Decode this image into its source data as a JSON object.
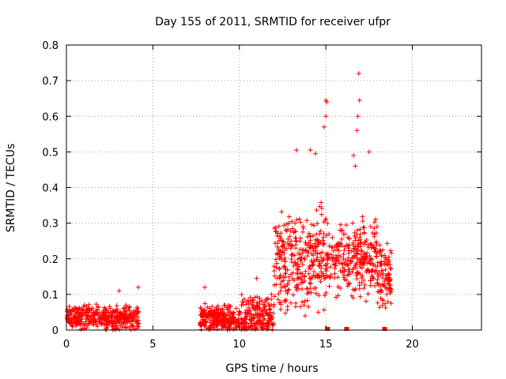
{
  "chart_data": {
    "type": "scatter",
    "title": "Day 155 of 2011, SRMTID for receiver ufpr",
    "xlabel": "GPS time / hours",
    "ylabel": "SRMTID / TECUs",
    "xlim": [
      0,
      24
    ],
    "ylim": [
      0,
      0.8
    ],
    "x_ticks": [
      0,
      5,
      10,
      15,
      20
    ],
    "x_tick_labels": [
      "0",
      "5",
      "10",
      "15",
      "20"
    ],
    "y_ticks": [
      0,
      0.1,
      0.2,
      0.3,
      0.4,
      0.5,
      0.6,
      0.7,
      0.8
    ],
    "y_tick_labels": [
      "0",
      "0.1",
      "0.2",
      "0.3",
      "0.4",
      "0.5",
      "0.6",
      "0.7",
      "0.8"
    ],
    "grid": true,
    "marker": "+",
    "color": "#ff0000",
    "square_marks_x": [
      15.1,
      16.2,
      18.4
    ],
    "segments": [
      {
        "x_start": 0.0,
        "x_end": 4.2,
        "y_base": 0.035,
        "y_spread": 0.03,
        "count": 420
      },
      {
        "x_start": 7.7,
        "x_end": 10.0,
        "y_base": 0.03,
        "y_spread": 0.035,
        "count": 260
      },
      {
        "x_start": 10.0,
        "x_end": 12.0,
        "y_base": 0.04,
        "y_spread": 0.05,
        "count": 200
      },
      {
        "x_start": 12.0,
        "x_end": 15.0,
        "y_base": 0.2,
        "y_spread": 0.12,
        "count": 320
      },
      {
        "x_start": 15.0,
        "x_end": 16.8,
        "y_base": 0.2,
        "y_spread": 0.09,
        "count": 160
      },
      {
        "x_start": 16.8,
        "x_end": 18.0,
        "y_base": 0.2,
        "y_spread": 0.1,
        "count": 140
      },
      {
        "x_start": 18.0,
        "x_end": 18.8,
        "y_base": 0.15,
        "y_spread": 0.08,
        "count": 90
      }
    ],
    "notable_points": [
      {
        "x": 16.9,
        "y": 0.72
      },
      {
        "x": 16.95,
        "y": 0.645
      },
      {
        "x": 16.85,
        "y": 0.6
      },
      {
        "x": 16.8,
        "y": 0.56
      },
      {
        "x": 15.0,
        "y": 0.645
      },
      {
        "x": 15.05,
        "y": 0.64
      },
      {
        "x": 15.0,
        "y": 0.6
      },
      {
        "x": 14.9,
        "y": 0.57
      },
      {
        "x": 13.3,
        "y": 0.505
      },
      {
        "x": 14.1,
        "y": 0.505
      },
      {
        "x": 14.4,
        "y": 0.495
      },
      {
        "x": 17.5,
        "y": 0.5
      },
      {
        "x": 16.6,
        "y": 0.49
      },
      {
        "x": 16.7,
        "y": 0.46
      },
      {
        "x": 4.15,
        "y": 0.12
      },
      {
        "x": 3.05,
        "y": 0.11
      },
      {
        "x": 11.0,
        "y": 0.145
      },
      {
        "x": 8.0,
        "y": 0.12
      }
    ]
  }
}
